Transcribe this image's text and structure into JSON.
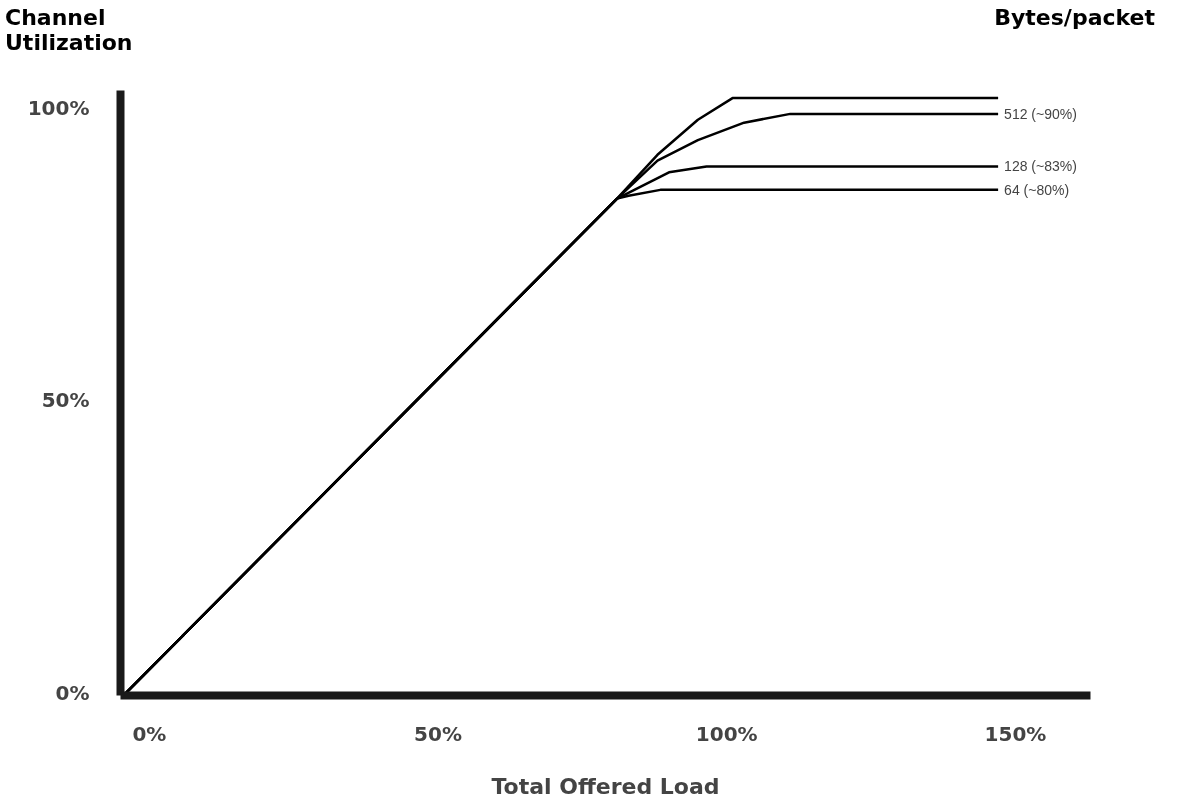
{
  "chart_data": {
    "type": "line",
    "xlabel": "Total Offered Load",
    "ylabel": "Channel Utilization",
    "legend_title": "Bytes/packet",
    "xlim": [
      -5,
      163
    ],
    "ylim": [
      -0.5,
      103
    ],
    "xticks": [
      {
        "value": 0,
        "label": "0%"
      },
      {
        "value": 50,
        "label": "50%"
      },
      {
        "value": 100,
        "label": "100%"
      },
      {
        "value": 150,
        "label": "150%"
      }
    ],
    "yticks": [
      {
        "value": 0,
        "label": "0%"
      },
      {
        "value": 50,
        "label": "50%"
      },
      {
        "value": 100,
        "label": "100%"
      }
    ],
    "grid": false,
    "legend": false,
    "marker": "none",
    "line_style": "solid",
    "series": [
      {
        "color": "#000000",
        "x": [
          -4,
          81,
          88,
          95,
          101,
          147
        ],
        "values": [
          0,
          84.5,
          92,
          98,
          101.7,
          101.7
        ]
      },
      {
        "name": "512 (~90%)",
        "color": "#000000",
        "x": [
          -4,
          81,
          88,
          95,
          103,
          111,
          147
        ],
        "values": [
          0,
          84.5,
          91,
          94.5,
          97.5,
          99,
          99
        ]
      },
      {
        "name": "128 (~83%)",
        "color": "#000000",
        "x": [
          -4,
          81,
          84,
          90,
          96.5,
          147
        ],
        "values": [
          0,
          84.5,
          86,
          89,
          90,
          90
        ]
      },
      {
        "name": "64 (~80%)",
        "color": "#000000",
        "x": [
          -4,
          81,
          83,
          88.5,
          147
        ],
        "values": [
          0,
          84.5,
          85,
          86,
          86
        ]
      }
    ]
  }
}
